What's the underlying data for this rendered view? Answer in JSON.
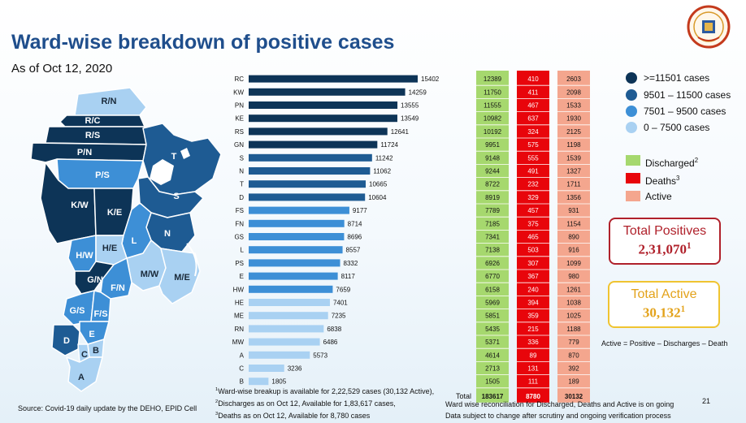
{
  "title": "Ward-wise breakdown of positive cases",
  "subtitle": "As of Oct 12, 2020",
  "legend_categories": [
    {
      "label": ">=11501 cases",
      "color": "#0d3457"
    },
    {
      "label": "9501 – 11500 cases",
      "color": "#1e5b93"
    },
    {
      "label": "7501 – 9500 cases",
      "color": "#3d8fd6"
    },
    {
      "label": "0 – 7500 cases",
      "color": "#a9d1f2"
    }
  ],
  "legend_status": {
    "discharged": {
      "label": "Discharged",
      "sup": "2",
      "color": "#a6d86e"
    },
    "deaths": {
      "label": "Deaths",
      "sup": "3",
      "color": "#e8050b"
    },
    "active": {
      "label": "Active",
      "color": "#f4a68e"
    }
  },
  "total_positives": {
    "label": "Total Positives",
    "value": "2,31,070",
    "sup": "1"
  },
  "total_active": {
    "label": "Total Active",
    "value": "30,132",
    "sup": "1"
  },
  "active_formula": "Active = Positive – Discharges – Death",
  "map_labels": [
    "R/N",
    "R/C",
    "R/S",
    "P/N",
    "P/S",
    "T",
    "S",
    "K/W",
    "K/E",
    "N",
    "H/W",
    "H/E",
    "L",
    "G/N",
    "M/W",
    "M/E",
    "F/N",
    "G/S",
    "F/S",
    "D",
    "E",
    "C",
    "B",
    "A"
  ],
  "chart_data": {
    "type": "bar",
    "orientation": "horizontal",
    "categories": [
      "RC",
      "KW",
      "PN",
      "KE",
      "RS",
      "GN",
      "S",
      "N",
      "T",
      "D",
      "FS",
      "FN",
      "GS",
      "L",
      "PS",
      "E",
      "HW",
      "HE",
      "ME",
      "RN",
      "MW",
      "A",
      "C",
      "B"
    ],
    "values": [
      15402,
      14259,
      13555,
      13549,
      12641,
      11724,
      11242,
      11062,
      10665,
      10604,
      9177,
      8714,
      8696,
      8557,
      8332,
      8117,
      7659,
      7401,
      7235,
      6838,
      6486,
      5573,
      3236,
      1805
    ],
    "colors": {
      "high": "#0d3457",
      "mid": "#1e5b93",
      "low": "#3d8fd6",
      "lowest": "#a9d1f2"
    },
    "discharged": [
      12389,
      11750,
      11555,
      10982,
      10192,
      9951,
      9148,
      9244,
      8722,
      8919,
      7789,
      7185,
      7341,
      7138,
      6926,
      6770,
      6158,
      5969,
      5851,
      5435,
      5371,
      4614,
      2713,
      1505
    ],
    "deaths": [
      410,
      411,
      467,
      637,
      324,
      575,
      555,
      491,
      232,
      329,
      457,
      375,
      465,
      503,
      307,
      367,
      240,
      394,
      359,
      215,
      336,
      89,
      131,
      111
    ],
    "active": [
      2603,
      2098,
      1533,
      1930,
      2125,
      1198,
      1539,
      1327,
      1711,
      1356,
      931,
      1154,
      890,
      916,
      1099,
      980,
      1261,
      1038,
      1025,
      1188,
      779,
      870,
      392,
      189
    ],
    "total_label": "Total",
    "totals": {
      "discharged": "183617",
      "deaths": "8780",
      "active": "30132"
    }
  },
  "footnotes": [
    {
      "sup": "1",
      "text": "Ward-wise breakup is available for 2,22,529 cases (30,132 Active),"
    },
    {
      "sup": "2",
      "text": "Discharges as on Oct 12, Available for 1,83,617 cases,"
    },
    {
      "sup": "3",
      "text": "Deaths as on Oct 12, Available for 8,780 cases"
    }
  ],
  "source": "Source: Covid-19 daily update by the DEHO, EPID Cell",
  "reconciliation_note": "Ward wise reconciliation for Discharged, Deaths and Active is on going",
  "scrutiny_note": "Data subject to change after scrutiny and ongoing verification process",
  "page_number": "21"
}
